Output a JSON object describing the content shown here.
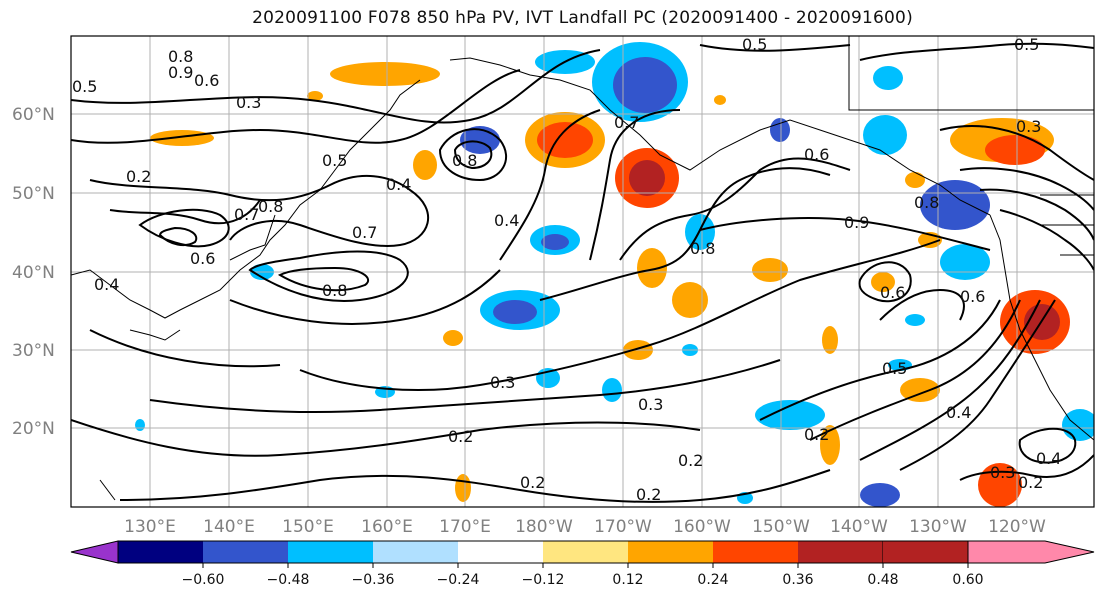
{
  "title": "2020091100 F078 850 hPa PV, IVT Landfall PC (2020091400 - 2020091600)",
  "lat_labels": [
    "60°N",
    "50°N",
    "40°N",
    "30°N",
    "20°N"
  ],
  "lon_labels": [
    "130°E",
    "140°E",
    "150°E",
    "160°E",
    "170°E",
    "180°W",
    "170°W",
    "160°W",
    "150°W",
    "140°W",
    "130°W",
    "120°W"
  ],
  "colorbar": {
    "colors": [
      "#9933cc",
      "#000080",
      "#3355cc",
      "#00bfff",
      "#b0e0ff",
      "#ffffff",
      "#ffe680",
      "#ffa500",
      "#ff4500",
      "#b22222",
      "#ff88aa"
    ],
    "tick_labels": [
      "−0.60",
      "−0.48",
      "−0.36",
      "−0.24",
      "−0.12",
      "0.12",
      "0.24",
      "0.36",
      "0.48",
      "0.60"
    ]
  },
  "contour_labels": [
    "0.8",
    "0.9",
    "0.6",
    "0.5",
    "0.3",
    "0.2",
    "0.5",
    "0.4",
    "0.8",
    "0.7",
    "0.7",
    "0.8",
    "0.4",
    "0.6",
    "0.8",
    "0.7",
    "0.6",
    "0.5",
    "0.4",
    "0.3",
    "0.8",
    "0.6",
    "0.5",
    "0.3",
    "0.2",
    "0.2",
    "0.2",
    "0.3",
    "0.2",
    "0.5",
    "0.4",
    "0.2",
    "0.3",
    "0.2",
    "0.4",
    "0.6",
    "0.8",
    "0.9"
  ]
}
